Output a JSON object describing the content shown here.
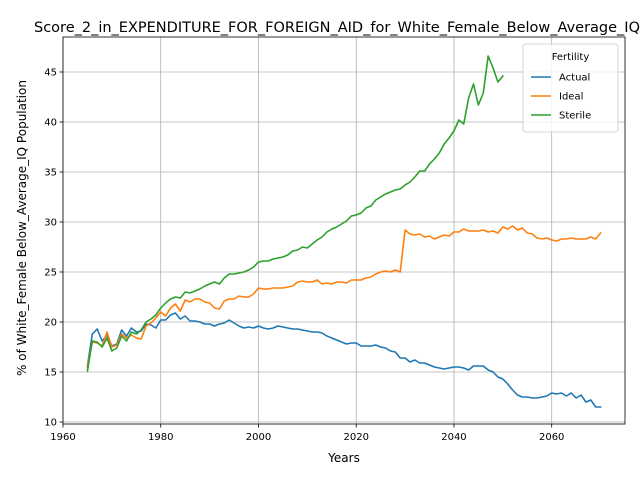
{
  "chart_data": {
    "type": "line",
    "title": "Score_2_in_EXPENDITURE_FOR_FOREIGN_AID_for_White_Female_Below_Average_IQ",
    "xlabel": "Years",
    "ylabel": "% of White_Female Below_Average_IQ Population",
    "xlim": [
      1960,
      2075
    ],
    "ylim": [
      9.8,
      48.5
    ],
    "xticks": [
      1960,
      1980,
      2000,
      2020,
      2040,
      2060
    ],
    "yticks": [
      10,
      15,
      20,
      25,
      30,
      35,
      40,
      45
    ],
    "grid": true,
    "legend": {
      "title": "Fertility",
      "position": "top-right"
    },
    "series": [
      {
        "name": "Actual",
        "color": "#1f77b4",
        "x": [
          1965,
          1966,
          1967,
          1968,
          1969,
          1970,
          1971,
          1972,
          1973,
          1974,
          1975,
          1976,
          1977,
          1978,
          1979,
          1980,
          1981,
          1982,
          1983,
          1984,
          1985,
          1986,
          1987,
          1988,
          1989,
          1990,
          1991,
          1992,
          1993,
          1994,
          1995,
          1996,
          1997,
          1998,
          1999,
          2000,
          2001,
          2002,
          2003,
          2004,
          2005,
          2006,
          2007,
          2008,
          2009,
          2010,
          2011,
          2012,
          2013,
          2014,
          2015,
          2016,
          2017,
          2018,
          2019,
          2020,
          2021,
          2022,
          2023,
          2024,
          2025,
          2026,
          2027,
          2028,
          2029,
          2030,
          2031,
          2032,
          2033,
          2034,
          2035,
          2036,
          2037,
          2038,
          2039,
          2040,
          2041,
          2042,
          2043,
          2044,
          2045,
          2046,
          2047,
          2048,
          2049,
          2050,
          2051,
          2052,
          2053,
          2054,
          2055,
          2056,
          2057,
          2058,
          2059,
          2060,
          2061,
          2062,
          2063,
          2064,
          2065,
          2066,
          2067,
          2068,
          2069,
          2070
        ],
        "values": [
          15.6,
          18.8,
          19.3,
          18.1,
          18.7,
          17.6,
          17.8,
          19.2,
          18.6,
          19.4,
          19.0,
          19.1,
          19.8,
          19.7,
          19.4,
          20.2,
          20.2,
          20.7,
          20.9,
          20.3,
          20.6,
          20.1,
          20.1,
          20.0,
          19.8,
          19.8,
          19.6,
          19.8,
          19.9,
          20.2,
          19.9,
          19.6,
          19.4,
          19.5,
          19.4,
          19.6,
          19.4,
          19.3,
          19.4,
          19.6,
          19.5,
          19.4,
          19.3,
          19.3,
          19.2,
          19.1,
          19.0,
          19.0,
          18.9,
          18.6,
          18.4,
          18.2,
          18.0,
          17.8,
          17.9,
          17.9,
          17.6,
          17.6,
          17.6,
          17.7,
          17.5,
          17.4,
          17.1,
          17.0,
          16.4,
          16.4,
          16.0,
          16.2,
          15.9,
          15.9,
          15.7,
          15.5,
          15.4,
          15.3,
          15.4,
          15.5,
          15.5,
          15.4,
          15.2,
          15.6,
          15.6,
          15.6,
          15.2,
          15.0,
          14.5,
          14.3,
          13.8,
          13.2,
          12.7,
          12.5,
          12.5,
          12.4,
          12.4,
          12.5,
          12.6,
          12.9,
          12.8,
          12.9,
          12.6,
          12.9,
          12.4,
          12.7,
          12.0,
          12.2,
          11.5,
          11.5
        ]
      },
      {
        "name": "Ideal",
        "color": "#ff7f0e",
        "x": [
          1965,
          1966,
          1967,
          1968,
          1969,
          1970,
          1971,
          1972,
          1973,
          1974,
          1975,
          1976,
          1977,
          1978,
          1979,
          1980,
          1981,
          1982,
          1983,
          1984,
          1985,
          1986,
          1987,
          1988,
          1989,
          1990,
          1991,
          1992,
          1993,
          1994,
          1995,
          1996,
          1997,
          1998,
          1999,
          2000,
          2001,
          2002,
          2003,
          2004,
          2005,
          2006,
          2007,
          2008,
          2009,
          2010,
          2011,
          2012,
          2013,
          2014,
          2015,
          2016,
          2017,
          2018,
          2019,
          2020,
          2021,
          2022,
          2023,
          2024,
          2025,
          2026,
          2027,
          2028,
          2029,
          2030,
          2031,
          2032,
          2033,
          2034,
          2035,
          2036,
          2037,
          2038,
          2039,
          2040,
          2041,
          2042,
          2043,
          2044,
          2045,
          2046,
          2047,
          2048,
          2049,
          2050,
          2051,
          2052,
          2053,
          2054,
          2055,
          2056,
          2057,
          2058,
          2059,
          2060,
          2061,
          2062,
          2063,
          2064,
          2065,
          2066,
          2067,
          2068,
          2069,
          2070
        ],
        "values": [
          15.5,
          18.0,
          17.9,
          17.6,
          19.0,
          17.5,
          17.7,
          18.8,
          18.4,
          18.7,
          18.4,
          18.3,
          19.6,
          19.9,
          20.4,
          21.0,
          20.6,
          21.4,
          21.8,
          21.1,
          22.2,
          22.0,
          22.3,
          22.3,
          22.0,
          21.9,
          21.4,
          21.3,
          22.1,
          22.3,
          22.3,
          22.6,
          22.5,
          22.5,
          22.8,
          23.4,
          23.3,
          23.3,
          23.4,
          23.4,
          23.4,
          23.5,
          23.6,
          24.0,
          24.1,
          24.0,
          24.0,
          24.2,
          23.8,
          23.9,
          23.8,
          24.0,
          24.0,
          23.9,
          24.2,
          24.2,
          24.2,
          24.4,
          24.5,
          24.8,
          25.0,
          25.1,
          25.0,
          25.2,
          25.0,
          29.2,
          28.8,
          28.7,
          28.8,
          28.5,
          28.6,
          28.3,
          28.5,
          28.7,
          28.6,
          29.0,
          29.0,
          29.3,
          29.1,
          29.1,
          29.1,
          29.2,
          29.0,
          29.1,
          28.9,
          29.5,
          29.3,
          29.6,
          29.2,
          29.4,
          28.9,
          28.8,
          28.4,
          28.3,
          28.4,
          28.2,
          28.1,
          28.3,
          28.3,
          28.4,
          28.3,
          28.3,
          28.3,
          28.5,
          28.3,
          28.9
        ]
      },
      {
        "name": "Sterile",
        "color": "#2ca02c",
        "x": [
          1965,
          1966,
          1967,
          1968,
          1969,
          1970,
          1971,
          1972,
          1973,
          1974,
          1975,
          1976,
          1977,
          1978,
          1979,
          1980,
          1981,
          1982,
          1983,
          1984,
          1985,
          1986,
          1987,
          1988,
          1989,
          1990,
          1991,
          1992,
          1993,
          1994,
          1995,
          1996,
          1997,
          1998,
          1999,
          2000,
          2001,
          2002,
          2003,
          2004,
          2005,
          2006,
          2007,
          2008,
          2009,
          2010,
          2011,
          2012,
          2013,
          2014,
          2015,
          2016,
          2017,
          2018,
          2019,
          2020,
          2021,
          2022,
          2023,
          2024,
          2025,
          2026,
          2027,
          2028,
          2029,
          2030,
          2031,
          2032,
          2033,
          2034,
          2035,
          2036,
          2037,
          2038,
          2039,
          2040,
          2041,
          2042,
          2043,
          2044,
          2045,
          2046,
          2047,
          2048,
          2049,
          2050
        ],
        "values": [
          15.1,
          18.1,
          18.0,
          17.5,
          18.4,
          17.1,
          17.4,
          18.6,
          18.1,
          19.0,
          18.8,
          19.2,
          20.0,
          20.3,
          20.7,
          21.4,
          21.9,
          22.3,
          22.5,
          22.4,
          23.0,
          22.9,
          23.1,
          23.3,
          23.6,
          23.8,
          24.0,
          23.8,
          24.4,
          24.8,
          24.8,
          24.9,
          25.0,
          25.2,
          25.5,
          26.0,
          26.1,
          26.1,
          26.3,
          26.4,
          26.5,
          26.7,
          27.1,
          27.2,
          27.5,
          27.4,
          27.8,
          28.2,
          28.5,
          29.0,
          29.3,
          29.5,
          29.8,
          30.1,
          30.6,
          30.7,
          30.9,
          31.4,
          31.6,
          32.2,
          32.5,
          32.8,
          33.0,
          33.2,
          33.3,
          33.7,
          34.0,
          34.5,
          35.1,
          35.1,
          35.8,
          36.3,
          36.9,
          37.8,
          38.4,
          39.1,
          40.2,
          39.8,
          42.4,
          43.8,
          41.7,
          42.9,
          46.6,
          45.4,
          44.0,
          44.6
        ]
      }
    ]
  }
}
